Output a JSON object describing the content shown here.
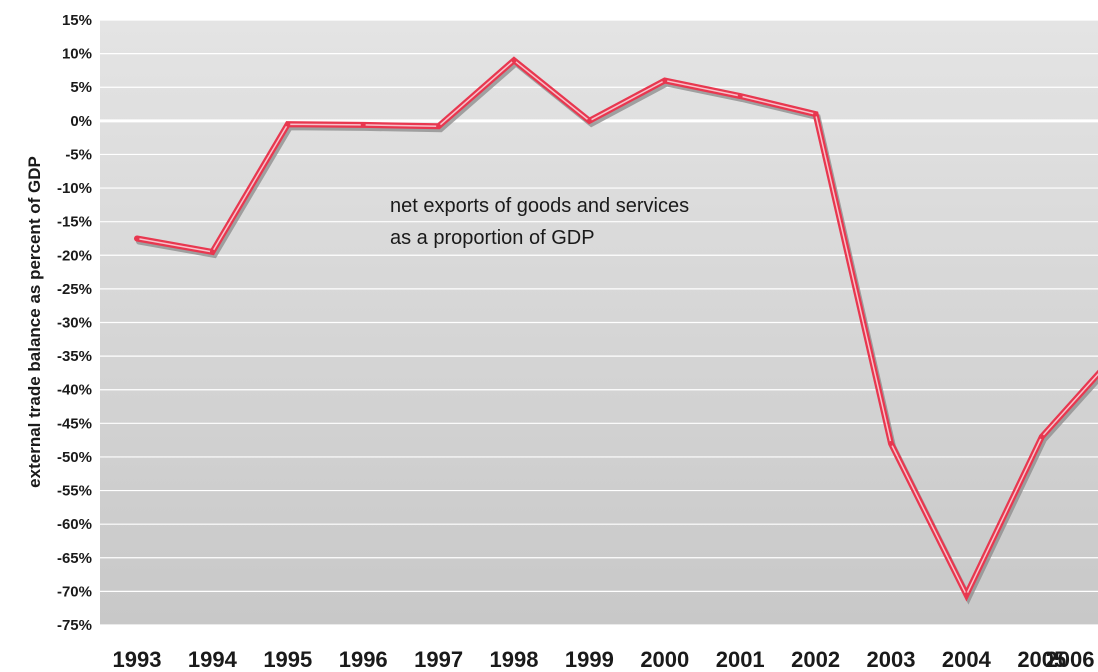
{
  "chart_data": {
    "type": "line",
    "title": "",
    "xlabel": "",
    "ylabel": "external trade balance as percent of GDP",
    "annotation": [
      "net exports of goods and services",
      "as a proportion of GDP"
    ],
    "categories": [
      "1993",
      "1994",
      "1995",
      "1996",
      "1997",
      "1998",
      "1999",
      "2000",
      "2001",
      "2002",
      "2003",
      "2004",
      "2005",
      "2006"
    ],
    "series": [
      {
        "values": [
          -17.5,
          -19.5,
          -0.5,
          -0.6,
          -0.8,
          9.0,
          0.0,
          6.0,
          3.7,
          1.0,
          -48.0,
          -70.5,
          -47.0,
          -34.5
        ]
      }
    ],
    "ylim": [
      -75,
      15
    ],
    "yticks": [
      15,
      10,
      5,
      0,
      -5,
      -10,
      -15,
      -20,
      -25,
      -30,
      -35,
      -40,
      -45,
      -50,
      -55,
      -60,
      -65,
      -70,
      -75
    ],
    "ytick_labels": [
      "15%",
      "10%",
      "5%",
      "0%",
      "-5%",
      "-10%",
      "-15%",
      "-20%",
      "-25%",
      "-30%",
      "-35%",
      "-40%",
      "-45%",
      "-50%",
      "-55%",
      "-60%",
      "-65%",
      "-70%",
      "-75%"
    ],
    "grid": true,
    "legend": "none",
    "colors": {
      "line": "#e8374f",
      "line_highlight": "#f7c2cb",
      "line_shadow": "#8a8a8a",
      "plot_background_top": "#e4e4e4",
      "plot_background_bottom": "#c9c9c9",
      "gridline": "#ffffff"
    }
  }
}
